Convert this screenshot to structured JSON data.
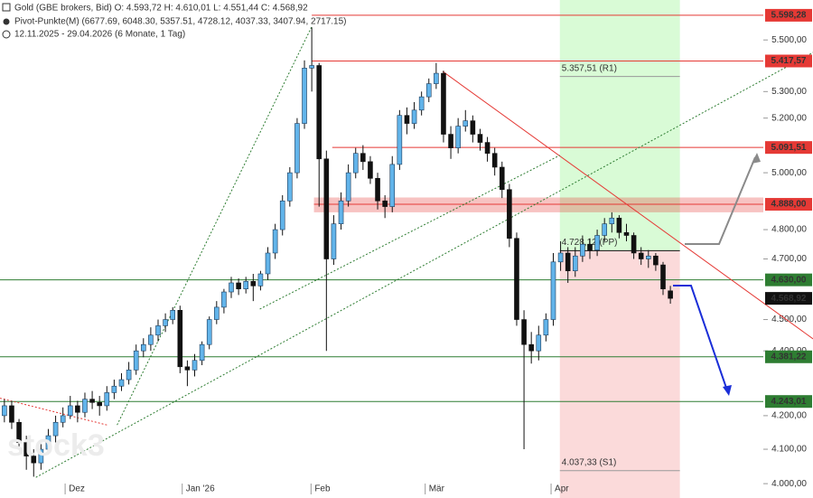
{
  "chart_data": {
    "type": "candlestick",
    "header": [
      "Gold (GBE brokers, Bid)  O: 4.593,72  H: 4.610,01  L: 4.551,44  C: 4.568,92",
      "Pivot-Punkte(M)  (6677.69, 6048.30, 5357.51, 4728.12, 4037.33, 3407.94, 2717.15)",
      "12.11.2025 - 29.04.2026  (6 Monate, 1 Tag)"
    ],
    "watermark": "stock3",
    "log_scale": true,
    "up_color": "#62b4ea",
    "down_color": "#111111",
    "xlim": [
      -0.6,
      103.7
    ],
    "ylim": [
      3959,
      5660
    ],
    "xticks": [
      {
        "value": 8.3,
        "label": "Dez"
      },
      {
        "value": 24.3,
        "label": "Jan '26"
      },
      {
        "value": 41.9,
        "label": "Feb"
      },
      {
        "value": 57.5,
        "label": "Mär"
      },
      {
        "value": 74.7,
        "label": "Apr"
      }
    ],
    "yticks": [
      {
        "value": 4000,
        "label": "4.000,00"
      },
      {
        "value": 4100,
        "label": "4.100,00"
      },
      {
        "value": 4200,
        "label": "4.200,00"
      },
      {
        "value": 4400,
        "label": "4.400,00"
      },
      {
        "value": 4500,
        "label": "4.500,00"
      },
      {
        "value": 4700,
        "label": "4.700,00"
      },
      {
        "value": 4800,
        "label": "4.800,00"
      },
      {
        "value": 5000,
        "label": "5.000,00"
      },
      {
        "value": 5200,
        "label": "5.200,00"
      },
      {
        "value": 5300,
        "label": "5.300,00"
      },
      {
        "value": 5500,
        "label": "5.500,00"
      }
    ],
    "candles": [
      [
        4200,
        4250,
        4180,
        4230
      ],
      [
        4230,
        4245,
        4160,
        4180
      ],
      [
        4180,
        4190,
        4100,
        4120
      ],
      [
        4120,
        4140,
        4040,
        4080
      ],
      [
        4080,
        4100,
        4020,
        4060
      ],
      [
        4060,
        4115,
        4040,
        4100
      ],
      [
        4100,
        4160,
        4085,
        4140
      ],
      [
        4140,
        4200,
        4120,
        4180
      ],
      [
        4180,
        4225,
        4165,
        4200
      ],
      [
        4200,
        4260,
        4190,
        4230
      ],
      [
        4230,
        4245,
        4180,
        4210
      ],
      [
        4210,
        4270,
        4195,
        4250
      ],
      [
        4250,
        4275,
        4220,
        4240
      ],
      [
        4240,
        4260,
        4200,
        4230
      ],
      [
        4230,
        4290,
        4215,
        4270
      ],
      [
        4270,
        4310,
        4250,
        4290
      ],
      [
        4290,
        4330,
        4275,
        4310
      ],
      [
        4310,
        4365,
        4295,
        4340
      ],
      [
        4340,
        4420,
        4325,
        4400
      ],
      [
        4400,
        4440,
        4380,
        4420
      ],
      [
        4420,
        4475,
        4400,
        4450
      ],
      [
        4450,
        4500,
        4430,
        4480
      ],
      [
        4480,
        4520,
        4460,
        4500
      ],
      [
        4500,
        4540,
        4485,
        4530
      ],
      [
        4530,
        4545,
        4330,
        4350
      ],
      [
        4350,
        4370,
        4290,
        4340
      ],
      [
        4340,
        4390,
        4320,
        4370
      ],
      [
        4370,
        4430,
        4355,
        4420
      ],
      [
        4420,
        4510,
        4405,
        4500
      ],
      [
        4500,
        4560,
        4485,
        4540
      ],
      [
        4540,
        4600,
        4520,
        4590
      ],
      [
        4590,
        4640,
        4570,
        4620
      ],
      [
        4620,
        4635,
        4580,
        4600
      ],
      [
        4600,
        4640,
        4585,
        4625
      ],
      [
        4625,
        4650,
        4560,
        4610
      ],
      [
        4610,
        4660,
        4595,
        4650
      ],
      [
        4650,
        4740,
        4630,
        4720
      ],
      [
        4720,
        4820,
        4700,
        4800
      ],
      [
        4800,
        4920,
        4780,
        4900
      ],
      [
        4900,
        5020,
        4880,
        5000
      ],
      [
        5000,
        5200,
        4980,
        5180
      ],
      [
        5180,
        5420,
        5160,
        5390
      ],
      [
        5390,
        5550,
        5300,
        5400
      ],
      [
        5400,
        5410,
        4880,
        5050
      ],
      [
        5050,
        5080,
        4400,
        4700
      ],
      [
        4700,
        4850,
        4680,
        4820
      ],
      [
        4820,
        4930,
        4800,
        4900
      ],
      [
        4900,
        5030,
        4880,
        5000
      ],
      [
        5000,
        5090,
        4980,
        5070
      ],
      [
        5070,
        5100,
        5010,
        5040
      ],
      [
        5040,
        5060,
        4960,
        4980
      ],
      [
        4980,
        5000,
        4870,
        4900
      ],
      [
        4900,
        4920,
        4840,
        4880
      ],
      [
        4880,
        5060,
        4860,
        5030
      ],
      [
        5030,
        5230,
        5010,
        5210
      ],
      [
        5210,
        5240,
        5140,
        5180
      ],
      [
        5180,
        5260,
        5160,
        5230
      ],
      [
        5230,
        5300,
        5210,
        5280
      ],
      [
        5280,
        5350,
        5260,
        5330
      ],
      [
        5330,
        5410,
        5310,
        5370
      ],
      [
        5370,
        5380,
        5110,
        5140
      ],
      [
        5140,
        5170,
        5050,
        5090
      ],
      [
        5090,
        5200,
        5070,
        5170
      ],
      [
        5170,
        5230,
        5150,
        5190
      ],
      [
        5190,
        5210,
        5110,
        5140
      ],
      [
        5140,
        5160,
        5080,
        5110
      ],
      [
        5110,
        5130,
        5040,
        5070
      ],
      [
        5070,
        5090,
        4990,
        5020
      ],
      [
        5020,
        5040,
        4910,
        4940
      ],
      [
        4940,
        4960,
        4740,
        4770
      ],
      [
        4770,
        4790,
        4480,
        4500
      ],
      [
        4500,
        4530,
        4100,
        4420
      ],
      [
        4420,
        4460,
        4360,
        4400
      ],
      [
        4400,
        4480,
        4370,
        4450
      ],
      [
        4450,
        4520,
        4430,
        4500
      ],
      [
        4500,
        4720,
        4480,
        4690
      ],
      [
        4690,
        4760,
        4660,
        4720
      ],
      [
        4720,
        4740,
        4620,
        4660
      ],
      [
        4660,
        4740,
        4640,
        4710
      ],
      [
        4710,
        4780,
        4690,
        4750
      ],
      [
        4750,
        4770,
        4700,
        4730
      ],
      [
        4730,
        4800,
        4710,
        4780
      ],
      [
        4780,
        4840,
        4760,
        4820
      ],
      [
        4820,
        4860,
        4790,
        4840
      ],
      [
        4840,
        4850,
        4770,
        4790
      ],
      [
        4790,
        4820,
        4760,
        4780
      ],
      [
        4780,
        4790,
        4700,
        4720
      ],
      [
        4720,
        4740,
        4680,
        4700
      ],
      [
        4700,
        4730,
        4670,
        4710
      ],
      [
        4710,
        4720,
        4660,
        4680
      ],
      [
        4680,
        4690,
        4580,
        4600
      ],
      [
        4593.72,
        4610.01,
        4551.44,
        4568.92
      ]
    ],
    "levels": [
      {
        "value": 5598.28,
        "label": "5.598,28",
        "color": "#e53935",
        "from": 42
      },
      {
        "value": 5417.57,
        "label": "5.417,57",
        "color": "#e53935",
        "from": 42
      },
      {
        "value": 5091.51,
        "label": "5.091,51",
        "color": "#e53935",
        "from": 44.8
      },
      {
        "value": 4888,
        "label": "4.888,00",
        "color": "#e53935",
        "from": 42.3,
        "band": [
          4860,
          4912
        ]
      },
      {
        "value": 4630,
        "label": "4.630,00",
        "color": "#2e7d32",
        "from": -0.6
      },
      {
        "value": 4568.92,
        "label": "4.568,92",
        "color": "#111111",
        "from": 103.7
      },
      {
        "value": 4381.22,
        "label": "4.381,22",
        "color": "#2e7d32",
        "from": -0.6
      },
      {
        "value": 4243.01,
        "label": "4.243,01",
        "color": "#2e7d32",
        "from": -0.6
      }
    ],
    "pivot_range": [
      75.9,
      92.3
    ],
    "pivots": [
      {
        "value": 5357.51,
        "label": "5.357,51 (R1)",
        "color": "#999999"
      },
      {
        "value": 4728.12,
        "label": "4.728,12 (PP)",
        "color": "#111111"
      },
      {
        "value": 4037.33,
        "label": "4.037,33 (S1)",
        "color": "#999999"
      }
    ],
    "trendlines": [
      {
        "color": "#e53935",
        "dash": false,
        "points": [
          [
            59.9,
            5377
          ],
          [
            110.5,
            4438
          ]
        ]
      },
      {
        "color": "#e53935",
        "dash": true,
        "points": [
          [
            -0.6,
            4253
          ],
          [
            14.2,
            4171
          ]
        ]
      },
      {
        "color": "#2e7d32",
        "dash": true,
        "points": [
          [
            4.3,
            4018
          ],
          [
            110.5,
            5451
          ]
        ]
      },
      {
        "color": "#2e7d32",
        "dash": true,
        "points": [
          [
            15.4,
            4172
          ],
          [
            42,
            5553
          ]
        ]
      },
      {
        "color": "#2e7d32",
        "dash": true,
        "points": [
          [
            34.9,
            4534
          ],
          [
            75.9,
            5063
          ]
        ]
      }
    ]
  }
}
